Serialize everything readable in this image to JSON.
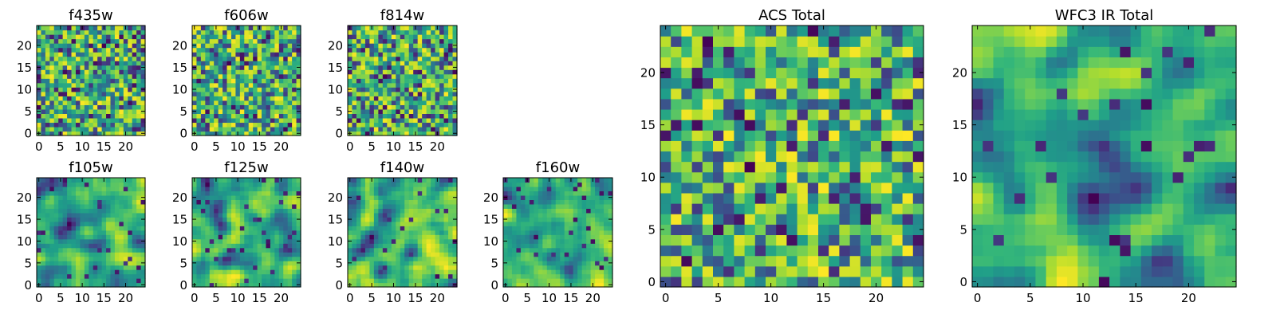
{
  "chart_data": [
    {
      "type": "heatmap",
      "title": "f435w",
      "xlim": [
        0,
        24
      ],
      "ylim": [
        0,
        24
      ],
      "xticks": [
        0,
        5,
        10,
        15,
        20
      ],
      "yticks": [
        0,
        5,
        10,
        15,
        20
      ],
      "grid_size": [
        25,
        25
      ],
      "texture": "noise",
      "colormap": "viridis"
    },
    {
      "type": "heatmap",
      "title": "f606w",
      "xlim": [
        0,
        24
      ],
      "ylim": [
        0,
        24
      ],
      "xticks": [
        0,
        5,
        10,
        15,
        20
      ],
      "yticks": [
        0,
        5,
        10,
        15,
        20
      ],
      "grid_size": [
        25,
        25
      ],
      "texture": "noise",
      "colormap": "viridis"
    },
    {
      "type": "heatmap",
      "title": "f814w",
      "xlim": [
        0,
        24
      ],
      "ylim": [
        0,
        24
      ],
      "xticks": [
        0,
        5,
        10,
        15,
        20
      ],
      "yticks": [
        0,
        5,
        10,
        15,
        20
      ],
      "grid_size": [
        25,
        25
      ],
      "texture": "noise",
      "colormap": "viridis"
    },
    {
      "type": "heatmap",
      "title": "f105w",
      "xlim": [
        0,
        24
      ],
      "ylim": [
        0,
        24
      ],
      "xticks": [
        0,
        5,
        10,
        15,
        20
      ],
      "yticks": [
        0,
        5,
        10,
        15,
        20
      ],
      "grid_size": [
        25,
        25
      ],
      "texture": "smooth",
      "colormap": "viridis"
    },
    {
      "type": "heatmap",
      "title": "f125w",
      "xlim": [
        0,
        24
      ],
      "ylim": [
        0,
        24
      ],
      "xticks": [
        0,
        5,
        10,
        15,
        20
      ],
      "yticks": [
        0,
        5,
        10,
        15,
        20
      ],
      "grid_size": [
        25,
        25
      ],
      "texture": "smooth",
      "colormap": "viridis"
    },
    {
      "type": "heatmap",
      "title": "f140w",
      "xlim": [
        0,
        24
      ],
      "ylim": [
        0,
        24
      ],
      "xticks": [
        0,
        5,
        10,
        15,
        20
      ],
      "yticks": [
        0,
        5,
        10,
        15,
        20
      ],
      "grid_size": [
        25,
        25
      ],
      "texture": "smooth",
      "colormap": "viridis"
    },
    {
      "type": "heatmap",
      "title": "f160w",
      "xlim": [
        0,
        24
      ],
      "ylim": [
        0,
        24
      ],
      "xticks": [
        0,
        5,
        10,
        15,
        20
      ],
      "yticks": [
        0,
        5,
        10,
        15,
        20
      ],
      "grid_size": [
        25,
        25
      ],
      "texture": "smooth",
      "colormap": "viridis"
    },
    {
      "type": "heatmap",
      "title": "ACS Total",
      "xlim": [
        0,
        24
      ],
      "ylim": [
        0,
        24
      ],
      "xticks": [
        0,
        5,
        10,
        15,
        20
      ],
      "yticks": [
        0,
        5,
        10,
        15,
        20
      ],
      "grid_size": [
        25,
        25
      ],
      "texture": "noise",
      "colormap": "viridis"
    },
    {
      "type": "heatmap",
      "title": "WFC3 IR Total",
      "xlim": [
        0,
        24
      ],
      "ylim": [
        0,
        24
      ],
      "xticks": [
        0,
        5,
        10,
        15,
        20
      ],
      "yticks": [
        0,
        5,
        10,
        15,
        20
      ],
      "grid_size": [
        25,
        25
      ],
      "texture": "smooth",
      "colormap": "viridis"
    }
  ]
}
